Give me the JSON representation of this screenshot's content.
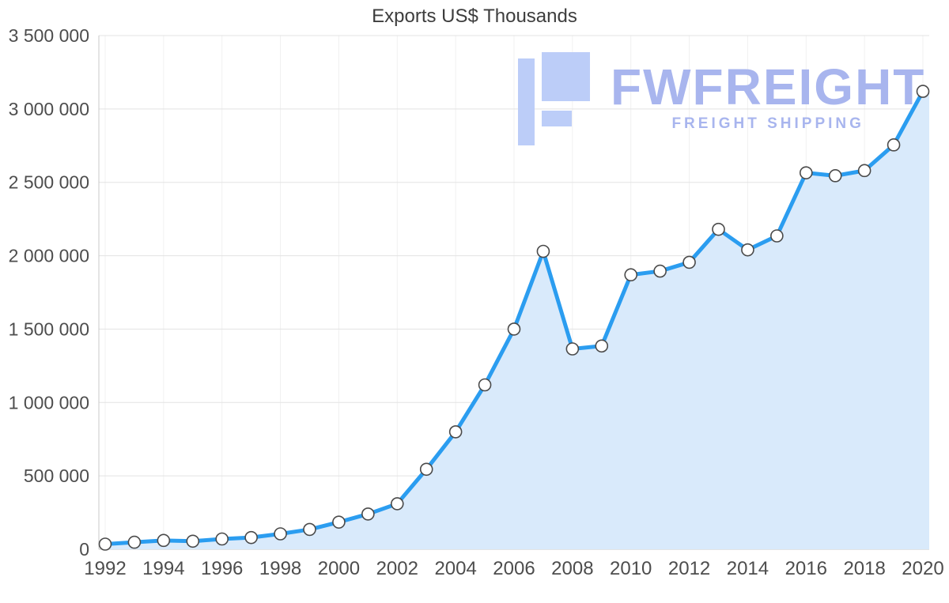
{
  "chart_data": {
    "type": "area",
    "title": "Exports US$ Thousands",
    "xlabel": "",
    "ylabel": "",
    "x": [
      1992,
      1993,
      1994,
      1995,
      1996,
      1997,
      1998,
      1999,
      2000,
      2001,
      2002,
      2003,
      2004,
      2005,
      2006,
      2007,
      2008,
      2009,
      2010,
      2011,
      2012,
      2013,
      2014,
      2015,
      2016,
      2017,
      2018,
      2019,
      2020
    ],
    "values": [
      35000,
      48000,
      60000,
      55000,
      70000,
      80000,
      105000,
      135000,
      185000,
      240000,
      310000,
      545000,
      800000,
      1120000,
      1500000,
      2030000,
      1365000,
      1385000,
      1870000,
      1895000,
      1955000,
      2180000,
      2040000,
      2135000,
      2565000,
      2545000,
      2580000,
      2755000,
      3120000
    ],
    "ylim": [
      0,
      3500000
    ],
    "yticks": [
      {
        "value": 0,
        "label": "0"
      },
      {
        "value": 500000,
        "label": "500 000"
      },
      {
        "value": 1000000,
        "label": "1 000 000"
      },
      {
        "value": 1500000,
        "label": "1 500 000"
      },
      {
        "value": 2000000,
        "label": "2 000 000"
      },
      {
        "value": 2500000,
        "label": "2 500 000"
      },
      {
        "value": 3000000,
        "label": "3 000 000"
      },
      {
        "value": 3500000,
        "label": "3 500 000"
      }
    ],
    "xticks": [
      1992,
      1994,
      1996,
      1998,
      2000,
      2002,
      2004,
      2006,
      2008,
      2010,
      2012,
      2014,
      2016,
      2018,
      2020
    ],
    "grid": true,
    "legend": "none",
    "colors": {
      "line": "#2b9df0",
      "fill": "#d9eafb",
      "marker_fill": "#ffffff",
      "marker_stroke": "#4a4a4a",
      "grid": "#e3e3e3",
      "grid_vertical": "#f0f0f0",
      "axis": "#c8c8c8",
      "label": "#4d4d4d",
      "title": "#3d3d3d"
    }
  },
  "watermark": {
    "brand": "FWFREIGHT",
    "tagline": "FREIGHT SHIPPING",
    "text_color": "#a8b5ee",
    "icon_color": "#bccdf8",
    "icon": "fwfreight-logo-icon"
  }
}
